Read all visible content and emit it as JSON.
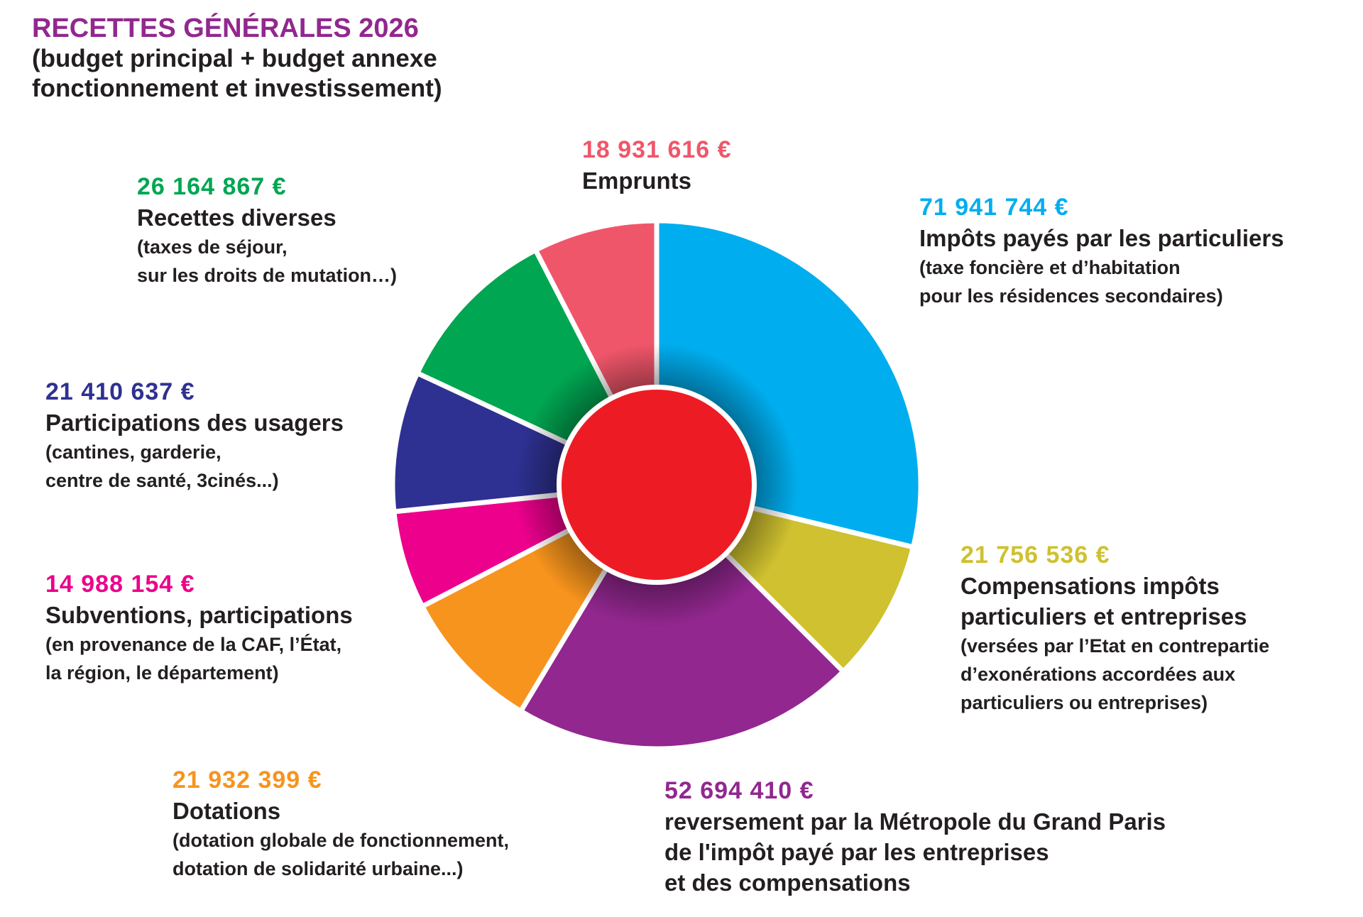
{
  "title": {
    "main": "RECETTES GÉNÉRALES 2026",
    "sub_lines": [
      "(budget principal + budget annexe",
      "fonctionnement et investissement)"
    ]
  },
  "colors": {
    "title": "#92278f",
    "center": "#ed1c24"
  },
  "chart_data": {
    "type": "pie",
    "variant": "donut",
    "title": "RECETTES GÉNÉRALES 2026",
    "start": "top",
    "direction": "clockwise",
    "unit": "€",
    "series": [
      {
        "key": "impots",
        "value_label": "71 941 744 €",
        "value": 71941744,
        "name": "Impôts payés par les particuliers",
        "name_lines": [
          "Impôts payés par les particuliers"
        ],
        "details": [
          "(taxe foncière et d’habitation",
          "pour les résidences secondaires)"
        ],
        "color": "#00aeef"
      },
      {
        "key": "compensations",
        "value_label": "21 756 536 €",
        "value": 21756536,
        "name": "Compensations impôts particuliers et entreprises",
        "name_lines": [
          "Compensations impôts",
          "particuliers et entreprises"
        ],
        "details": [
          "(versées par l’Etat en contrepartie",
          "d’exonérations accordées aux",
          "particuliers ou entreprises)"
        ],
        "color": "#cfc12f"
      },
      {
        "key": "metropole",
        "value_label": "52 694 410 €",
        "value": 52694410,
        "name": "reversement par la Métropole du Grand Paris de l'impôt payé par les entreprises et des compensations",
        "name_lines": [
          "reversement par la Métropole du Grand Paris",
          "de l'impôt payé par les entreprises",
          "et des compensations"
        ],
        "details": [],
        "color": "#92278f"
      },
      {
        "key": "dotations",
        "value_label": "21 932 399 €",
        "value": 21932399,
        "name": "Dotations",
        "name_lines": [
          "Dotations"
        ],
        "details": [
          "(dotation globale de fonctionnement,",
          "dotation de solidarité urbaine...)"
        ],
        "color": "#f7941d"
      },
      {
        "key": "subventions",
        "value_label": "14 988 154 €",
        "value": 14988154,
        "name": "Subventions, participations",
        "name_lines": [
          "Subventions, participations"
        ],
        "details": [
          "(en provenance de la CAF, l’État,",
          "la région, le département)"
        ],
        "color": "#ec008c"
      },
      {
        "key": "participations",
        "value_label": "21 410 637 €",
        "value": 21410637,
        "name": "Participations des usagers",
        "name_lines": [
          "Participations des usagers"
        ],
        "details": [
          "(cantines, garderie,",
          "centre de santé, 3cinés...)"
        ],
        "color": "#2e3192"
      },
      {
        "key": "diverses",
        "value_label": "26 164 867 €",
        "value": 26164867,
        "name": "Recettes diverses",
        "name_lines": [
          "Recettes diverses"
        ],
        "details": [
          "(taxes de séjour,",
          "sur les droits de mutation…)"
        ],
        "color": "#00a651"
      },
      {
        "key": "emprunts",
        "value_label": "18 931 616 €",
        "value": 18931616,
        "name": "Emprunts",
        "name_lines": [
          "Emprunts"
        ],
        "details": [],
        "color": "#f0566a"
      }
    ]
  }
}
